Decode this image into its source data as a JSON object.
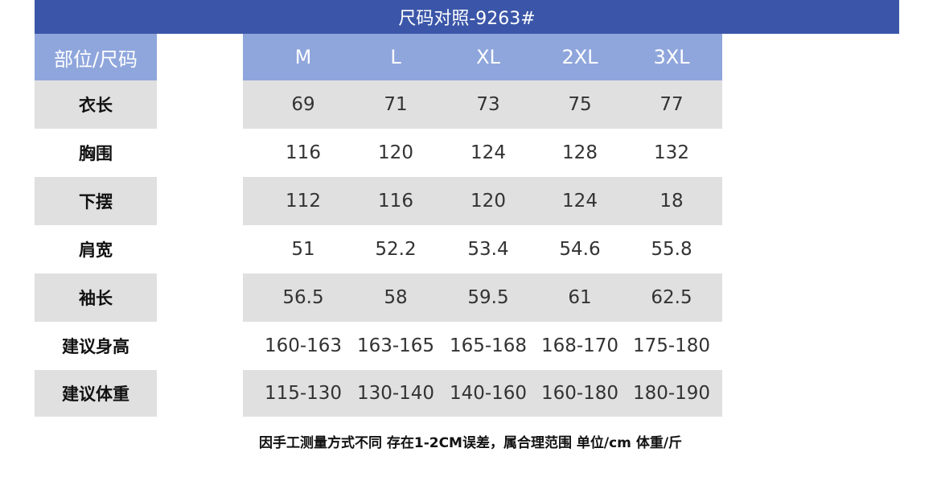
{
  "title": "尺码对照-9263#",
  "table": {
    "header": [
      "部位/尺码",
      "M",
      "L",
      "XL",
      "2XL",
      "3XL"
    ],
    "rows": [
      [
        "衣长",
        "69",
        "71",
        "73",
        "75",
        "77"
      ],
      [
        "胸围",
        "116",
        "120",
        "124",
        "128",
        "132"
      ],
      [
        "下摆",
        "112",
        "116",
        "120",
        "124",
        "18"
      ],
      [
        "肩宽",
        "51",
        "52.2",
        "53.4",
        "54.6",
        "55.8"
      ],
      [
        "袖长",
        "56.5",
        "58",
        "59.5",
        "61",
        "62.5"
      ],
      [
        "建议身高",
        "160-163",
        "163-165",
        "165-168",
        "168-170",
        "175-180"
      ],
      [
        "建议体重",
        "115-130",
        "130-140",
        "140-160",
        "160-180",
        "180-190"
      ]
    ]
  },
  "note": "因手工测量方式不同 存在1-2CM误差，属合理范围 单位/cm  体重/斤"
}
